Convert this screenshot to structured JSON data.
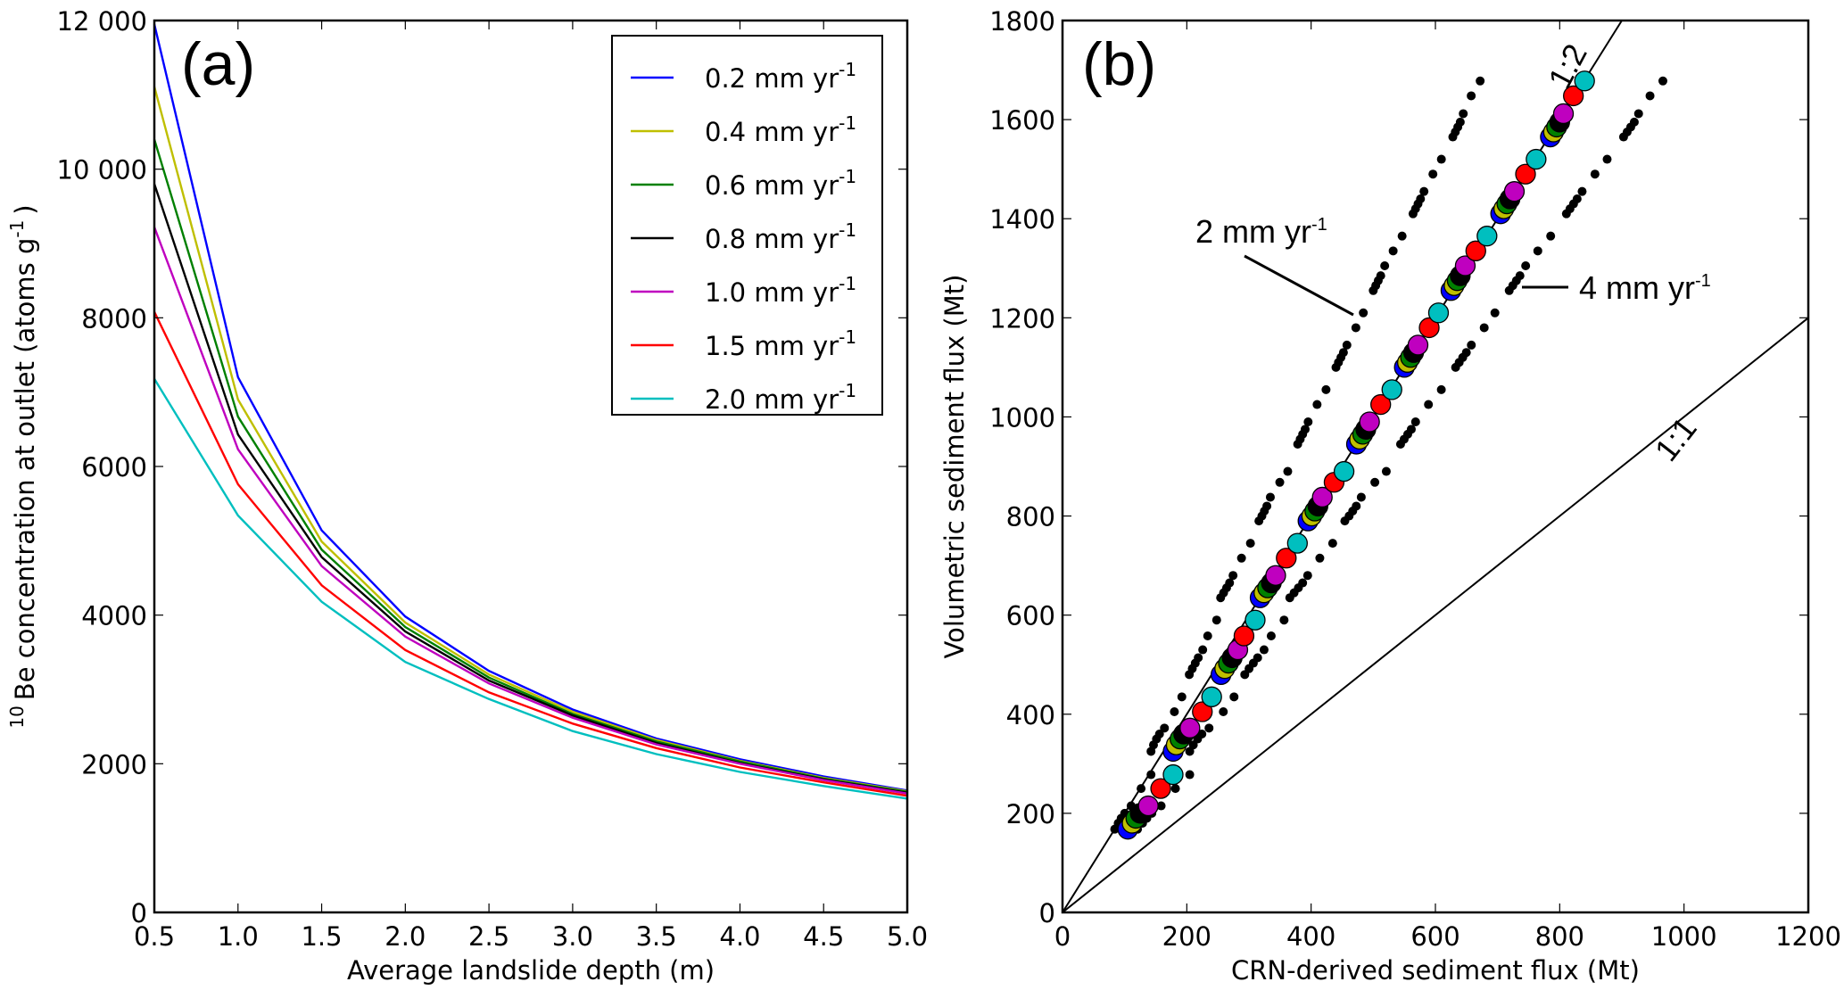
{
  "chart_data": [
    {
      "id": "a",
      "type": "line",
      "panel_label": "(a)",
      "title": "",
      "xlabel": "Average landslide depth (m)",
      "ylabel": "Be concentration at outlet (atoms g",
      "ylabel_pre_sup": "10",
      "ylabel_sup": "-1",
      "ylabel_close": ")",
      "xlim": [
        0.5,
        5.0
      ],
      "ylim": [
        0,
        12000
      ],
      "xticks": [
        0.5,
        1.0,
        1.5,
        2.0,
        2.5,
        3.0,
        3.5,
        4.0,
        4.5,
        5.0
      ],
      "xtick_labels": [
        "0.5",
        "1.0",
        "1.5",
        "2.0",
        "2.5",
        "3.0",
        "3.5",
        "4.0",
        "4.5",
        "5.0"
      ],
      "yticks": [
        0,
        2000,
        4000,
        6000,
        8000,
        10000,
        12000
      ],
      "ytick_labels": [
        "0",
        "2000",
        "4000",
        "6000",
        "8000",
        "10 000",
        "12 000"
      ],
      "grid": false,
      "legend_position": "top-right",
      "x": [
        0.5,
        1.0,
        1.5,
        2.0,
        2.5,
        3.0,
        3.5,
        4.0,
        4.5,
        5.0
      ],
      "series": [
        {
          "name": "0.2 mm yr",
          "sup": "-1",
          "color": "#0000ff",
          "values": [
            11950,
            7200,
            5140,
            3980,
            3250,
            2730,
            2340,
            2060,
            1830,
            1640
          ]
        },
        {
          "name": "0.4 mm yr",
          "sup": "-1",
          "color": "#bfbf00",
          "values": [
            11110,
            6900,
            4990,
            3900,
            3200,
            2700,
            2320,
            2040,
            1810,
            1630
          ]
        },
        {
          "name": "0.6 mm yr",
          "sup": "-1",
          "color": "#008000",
          "values": [
            10400,
            6670,
            4880,
            3840,
            3160,
            2670,
            2300,
            2030,
            1800,
            1620
          ]
        },
        {
          "name": "0.8 mm yr",
          "sup": "-1",
          "color": "#000000",
          "values": [
            9800,
            6430,
            4780,
            3780,
            3120,
            2650,
            2280,
            2010,
            1790,
            1610
          ]
        },
        {
          "name": "1.0 mm yr",
          "sup": "-1",
          "color": "#bf00bf",
          "values": [
            9220,
            6230,
            4660,
            3710,
            3080,
            2620,
            2260,
            2000,
            1780,
            1600
          ]
        },
        {
          "name": "1.5 mm yr",
          "sup": "-1",
          "color": "#ff0000",
          "values": [
            8080,
            5760,
            4400,
            3530,
            2960,
            2540,
            2210,
            1950,
            1750,
            1570
          ]
        },
        {
          "name": "2.0 mm yr",
          "sup": "-1",
          "color": "#00bfbf",
          "values": [
            7180,
            5340,
            4180,
            3370,
            2870,
            2440,
            2130,
            1890,
            1700,
            1530
          ]
        }
      ]
    },
    {
      "id": "b",
      "type": "scatter",
      "panel_label": "(b)",
      "title": "",
      "xlabel": "CRN-derived sediment flux (Mt)",
      "ylabel": "Volumetric sediment flux (Mt)",
      "xlim": [
        0,
        1200
      ],
      "ylim": [
        0,
        1800
      ],
      "xticks": [
        0,
        200,
        400,
        600,
        800,
        1000,
        1200
      ],
      "xtick_labels": [
        "0",
        "200",
        "400",
        "600",
        "800",
        "1000",
        "1200"
      ],
      "yticks": [
        0,
        200,
        400,
        600,
        800,
        1000,
        1200,
        1400,
        1600,
        1800
      ],
      "ytick_labels": [
        "0",
        "200",
        "400",
        "600",
        "800",
        "1000",
        "1200",
        "1400",
        "1600",
        "1800"
      ],
      "grid": false,
      "reference_lines": [
        {
          "label": "1:1",
          "slope": 1
        },
        {
          "label": "1:2",
          "slope": 2
        }
      ],
      "annotations": [
        {
          "text": "2 mm yr",
          "sup": "-1"
        },
        {
          "text": "4 mm yr",
          "sup": "-1"
        }
      ],
      "black_series": [
        {
          "name": "2 mm yr-1",
          "color": "#000000",
          "x_factor": 0.8
        },
        {
          "name": "4 mm yr-1",
          "color": "#000000",
          "x_factor": 1.15
        }
      ],
      "series": [
        {
          "name": "0.2 mm yr-1",
          "color": "#0000ff",
          "points": [
            [
              105,
              168
            ],
            [
              178,
              325
            ],
            [
              255,
              480
            ],
            [
              318,
              635
            ],
            [
              395,
              790
            ],
            [
              473,
              945
            ],
            [
              550,
              1100
            ],
            [
              625,
              1255
            ],
            [
              705,
              1410
            ],
            [
              785,
              1565
            ]
          ]
        },
        {
          "name": "0.4 mm yr-1",
          "color": "#bfbf00",
          "points": [
            [
              112,
              180
            ],
            [
              183,
              338
            ],
            [
              261,
              492
            ],
            [
              324,
              645
            ],
            [
              401,
              800
            ],
            [
              478,
              955
            ],
            [
              555,
              1110
            ],
            [
              630,
              1265
            ],
            [
              710,
              1420
            ],
            [
              790,
              1575
            ]
          ]
        },
        {
          "name": "0.6 mm yr-1",
          "color": "#008000",
          "points": [
            [
              118,
              190
            ],
            [
              189,
              350
            ],
            [
              267,
              503
            ],
            [
              330,
              655
            ],
            [
              406,
              810
            ],
            [
              483,
              965
            ],
            [
              560,
              1120
            ],
            [
              635,
              1275
            ],
            [
              715,
              1430
            ],
            [
              795,
              1585
            ]
          ]
        },
        {
          "name": "0.8 mm yr-1",
          "color": "#000000",
          "points": [
            [
              125,
              200
            ],
            [
              195,
              360
            ],
            [
              273,
              514
            ],
            [
              336,
              665
            ],
            [
              411,
              820
            ],
            [
              488,
              975
            ],
            [
              565,
              1130
            ],
            [
              640,
              1285
            ],
            [
              720,
              1440
            ],
            [
              800,
              1595
            ]
          ]
        },
        {
          "name": "1.0 mm yr-1",
          "color": "#bf00bf",
          "points": [
            [
              138,
              215
            ],
            [
              205,
              372
            ],
            [
              282,
              530
            ],
            [
              343,
              680
            ],
            [
              418,
              838
            ],
            [
              494,
              990
            ],
            [
              572,
              1145
            ],
            [
              648,
              1305
            ],
            [
              727,
              1455
            ],
            [
              806,
              1612
            ]
          ]
        },
        {
          "name": "1.5 mm yr-1",
          "color": "#ff0000",
          "points": [
            [
              158,
              250
            ],
            [
              225,
              405
            ],
            [
              292,
              558
            ],
            [
              360,
              715
            ],
            [
              437,
              868
            ],
            [
              512,
              1025
            ],
            [
              590,
              1180
            ],
            [
              665,
              1335
            ],
            [
              745,
              1490
            ],
            [
              822,
              1648
            ]
          ]
        },
        {
          "name": "2.0 mm yr-1",
          "color": "#00bfbf",
          "points": [
            [
              178,
              278
            ],
            [
              240,
              435
            ],
            [
              310,
              590
            ],
            [
              378,
              745
            ],
            [
              453,
              890
            ],
            [
              530,
              1055
            ],
            [
              605,
              1210
            ],
            [
              683,
              1365
            ],
            [
              762,
              1520
            ],
            [
              840,
              1678
            ]
          ]
        }
      ]
    }
  ]
}
